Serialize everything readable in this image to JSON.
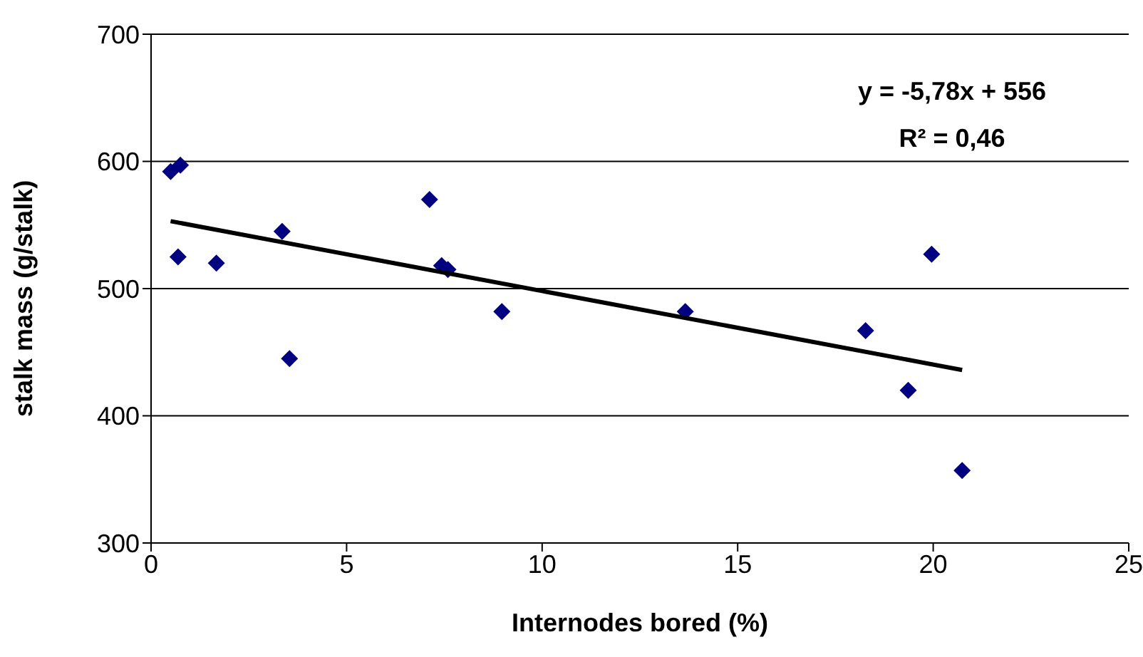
{
  "chart_data": {
    "type": "scatter",
    "xlabel": "Internodes bored (%)",
    "ylabel": "stalk mass (g/stalk)",
    "xlim": [
      0,
      25
    ],
    "xticks": [
      0,
      5,
      10,
      15,
      20,
      25
    ],
    "ylim": [
      300,
      700
    ],
    "yticks": [
      300,
      400,
      500,
      600,
      700
    ],
    "grid": "y",
    "legend": false,
    "annotations": [
      "y = -5,78x + 556",
      "R² = 0,46"
    ],
    "series": [
      {
        "color": "#000080",
        "marker": "diamond",
        "x": [
          0.5,
          0.75,
          0.69,
          1.67,
          3.35,
          3.54,
          7.12,
          7.43,
          7.59,
          8.97,
          13.66,
          18.27,
          19.96,
          19.36,
          20.74
        ],
        "values": [
          592,
          597,
          525,
          520,
          545,
          445,
          570,
          518,
          515,
          482,
          482,
          467,
          527,
          420,
          357
        ]
      },
      {
        "type": "line",
        "color": "#000000",
        "marker": "none",
        "line_style": "solid",
        "x": [
          0.5,
          20.74
        ],
        "values": [
          553,
          436
        ]
      }
    ]
  }
}
